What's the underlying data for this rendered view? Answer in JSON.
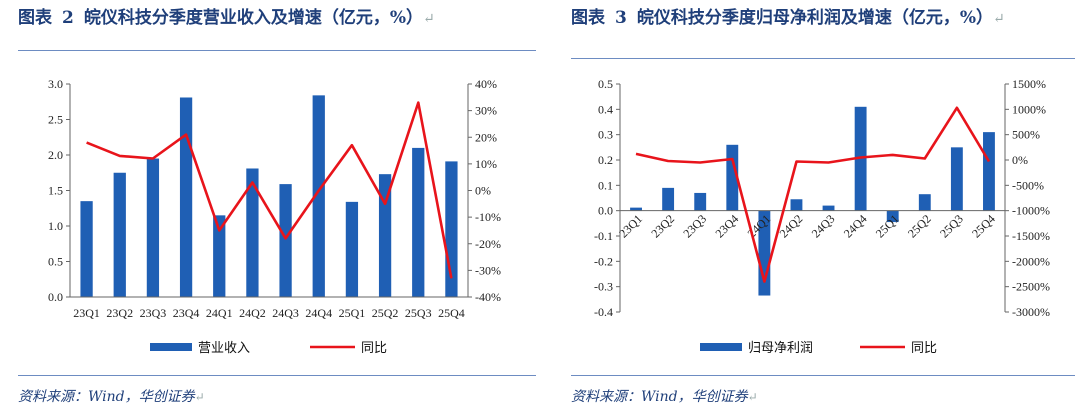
{
  "figures": [
    {
      "label": "图表",
      "number": "2",
      "title": "皖仪科技分季度营业收入及增速（亿元，%）",
      "source": "资料来源：Wind，华创证券"
    },
    {
      "label": "图表",
      "number": "3",
      "title": "皖仪科技分季度归母净利润及增速（亿元，%）",
      "source": "资料来源：Wind，华创证券"
    }
  ],
  "colors": {
    "bar": "#1f5fb4",
    "line": "#e8141b",
    "title": "#1f3f7a"
  },
  "chart_data": [
    {
      "type": "bar",
      "categories": [
        "23Q1",
        "23Q2",
        "23Q3",
        "23Q4",
        "24Q1",
        "24Q2",
        "24Q3",
        "24Q4",
        "25Q1",
        "25Q2",
        "25Q3",
        "25Q4"
      ],
      "series": [
        {
          "name": "营业收入",
          "type": "bar",
          "axis": "left",
          "values": [
            1.35,
            1.75,
            1.95,
            2.81,
            1.15,
            1.81,
            1.59,
            2.84,
            1.34,
            1.73,
            2.1,
            1.91
          ]
        },
        {
          "name": "同比",
          "type": "line",
          "axis": "right",
          "values": [
            18,
            13,
            12,
            21,
            -15,
            3,
            -18,
            0,
            17,
            -5,
            33,
            -33
          ]
        }
      ],
      "ylim_left": [
        0,
        3.0
      ],
      "yticks_left": [
        "0.0",
        "0.5",
        "1.0",
        "1.5",
        "2.0",
        "2.5",
        "3.0"
      ],
      "ylim_right": [
        -40,
        40
      ],
      "yticks_right": [
        "-40%",
        "-30%",
        "-20%",
        "-10%",
        "0%",
        "10%",
        "20%",
        "30%",
        "40%"
      ],
      "legend_position": "bottom"
    },
    {
      "type": "bar",
      "categories": [
        "23Q1",
        "23Q2",
        "23Q3",
        "23Q4",
        "24Q1",
        "24Q2",
        "24Q3",
        "24Q4",
        "25Q1",
        "25Q2",
        "25Q3",
        "25Q4"
      ],
      "series": [
        {
          "name": "归母净利润",
          "type": "bar",
          "axis": "left",
          "values": [
            0.012,
            0.09,
            0.07,
            0.26,
            -0.335,
            0.045,
            0.02,
            0.41,
            -0.045,
            0.065,
            0.25,
            0.31
          ]
        },
        {
          "name": "同比",
          "type": "line",
          "axis": "right",
          "values": [
            120,
            -20,
            -50,
            20,
            -2400,
            -30,
            -50,
            50,
            100,
            30,
            1030,
            -30
          ]
        }
      ],
      "ylim_left": [
        -0.4,
        0.5
      ],
      "yticks_left": [
        "-0.4",
        "-0.3",
        "-0.2",
        "-0.1",
        "0.0",
        "0.1",
        "0.2",
        "0.3",
        "0.4",
        "0.5"
      ],
      "ylim_right": [
        -3000,
        1500
      ],
      "yticks_right": [
        "-3000%",
        "-2500%",
        "-2000%",
        "-1500%",
        "-1000%",
        "-500%",
        "0%",
        "500%",
        "1000%",
        "1500%"
      ],
      "legend_position": "bottom"
    }
  ]
}
